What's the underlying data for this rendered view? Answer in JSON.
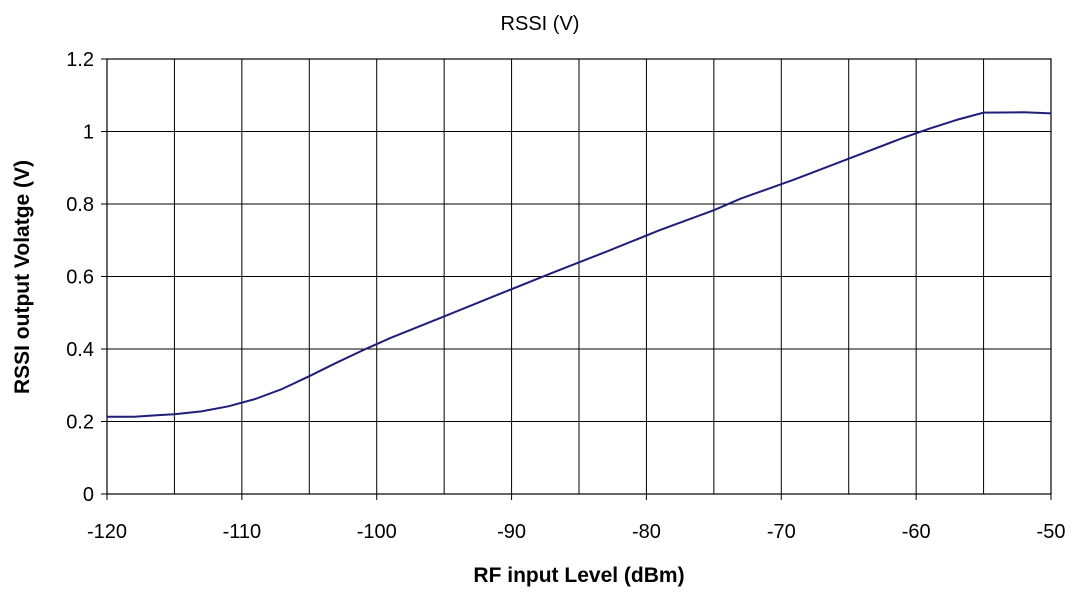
{
  "chart_data": {
    "type": "line",
    "title": "RSSI (V)",
    "xlabel": "RF input Level (dBm)",
    "ylabel": "RSSI output Volatge (V)",
    "xlim": [
      -120,
      -50
    ],
    "ylim": [
      0,
      1.2
    ],
    "x_ticks": [
      -120,
      -110,
      -100,
      -90,
      -80,
      -70,
      -60,
      -50
    ],
    "x_tick_labels": [
      "-120",
      "-110",
      "-100",
      "-90",
      "-80",
      "-70",
      "-60",
      "-50"
    ],
    "y_ticks": [
      0,
      0.2,
      0.4,
      0.6,
      0.8,
      1,
      1.2
    ],
    "y_tick_labels": [
      "0",
      "0.2",
      "0.4",
      "0.6",
      "0.8",
      "1",
      "1.2"
    ],
    "grid": true,
    "series": [
      {
        "color": "#1f1f7a",
        "x": [
          -120,
          -118,
          -116,
          -115,
          -113,
          -111,
          -109,
          -107,
          -105,
          -103,
          -101,
          -99,
          -95,
          -91,
          -87,
          -83,
          -79,
          -75,
          -73,
          -69,
          -65,
          -61,
          -59,
          -57,
          -55,
          -52,
          -50
        ],
        "y": [
          0.213,
          0.213,
          0.218,
          0.22,
          0.228,
          0.242,
          0.262,
          0.29,
          0.325,
          0.362,
          0.397,
          0.43,
          0.49,
          0.55,
          0.61,
          0.668,
          0.728,
          0.783,
          0.815,
          0.868,
          0.925,
          0.982,
          1.008,
          1.032,
          1.052,
          1.053,
          1.05
        ]
      }
    ]
  }
}
